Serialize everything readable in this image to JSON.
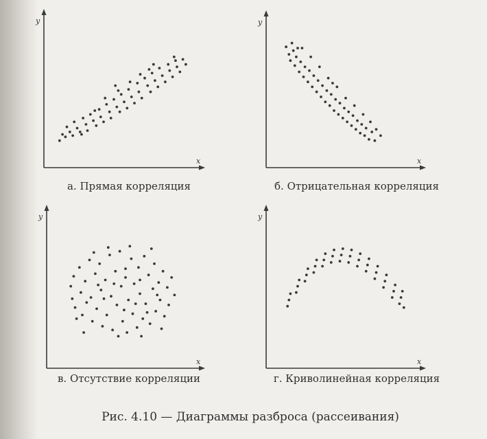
{
  "figure_caption": "Рис. 4.10 — Диаграммы разброса (рассеивания)",
  "chart_data": [
    {
      "id": "a",
      "type": "scatter",
      "caption": "а. Прямая корреляция",
      "xlabel": "x",
      "ylabel": "y",
      "xlim": [
        0,
        10
      ],
      "ylim": [
        0,
        10
      ],
      "grid": false,
      "points": [
        [
          0.6,
          1.5
        ],
        [
          0.8,
          2.0
        ],
        [
          1.0,
          1.8
        ],
        [
          1.1,
          2.6
        ],
        [
          1.3,
          2.2
        ],
        [
          1.5,
          1.9
        ],
        [
          1.6,
          3.0
        ],
        [
          1.8,
          2.5
        ],
        [
          2.0,
          2.2
        ],
        [
          2.2,
          3.3
        ],
        [
          2.4,
          2.8
        ],
        [
          2.5,
          2.3
        ],
        [
          2.7,
          3.6
        ],
        [
          2.9,
          3.1
        ],
        [
          3.1,
          2.7
        ],
        [
          3.3,
          4.0
        ],
        [
          3.4,
          3.4
        ],
        [
          3.6,
          3.0
        ],
        [
          3.8,
          4.4
        ],
        [
          4.0,
          3.8
        ],
        [
          4.1,
          3.3
        ],
        [
          4.3,
          4.8
        ],
        [
          4.5,
          4.2
        ],
        [
          4.7,
          3.8
        ],
        [
          4.8,
          5.2
        ],
        [
          5.0,
          4.6
        ],
        [
          5.2,
          4.1
        ],
        [
          5.3,
          5.6
        ],
        [
          5.5,
          5.0
        ],
        [
          5.7,
          4.5
        ],
        [
          5.9,
          6.1
        ],
        [
          6.0,
          5.4
        ],
        [
          6.2,
          4.9
        ],
        [
          6.4,
          6.5
        ],
        [
          6.6,
          5.9
        ],
        [
          6.8,
          5.4
        ],
        [
          6.9,
          6.9
        ],
        [
          7.1,
          6.3
        ],
        [
          7.3,
          5.8
        ],
        [
          7.4,
          7.3
        ],
        [
          7.6,
          6.7
        ],
        [
          7.8,
          6.2
        ],
        [
          8.0,
          7.6
        ],
        [
          8.1,
          7.1
        ],
        [
          8.3,
          6.6
        ],
        [
          8.5,
          7.9
        ],
        [
          8.6,
          7.4
        ],
        [
          8.8,
          7.0
        ],
        [
          9.0,
          8.0
        ],
        [
          9.2,
          7.6
        ],
        [
          3.0,
          3.9
        ],
        [
          4.6,
          5.5
        ],
        [
          6.1,
          6.8
        ],
        [
          7.0,
          7.6
        ],
        [
          8.4,
          8.2
        ],
        [
          2.1,
          2.0
        ],
        [
          5.4,
          6.2
        ],
        [
          6.7,
          7.2
        ],
        [
          3.7,
          4.9
        ],
        [
          4.4,
          5.9
        ]
      ]
    },
    {
      "id": "b",
      "type": "scatter",
      "caption": "б. Отрицательная корреляция",
      "xlabel": "x",
      "ylabel": "y",
      "xlim": [
        0,
        10
      ],
      "ylim": [
        0,
        10
      ],
      "grid": false,
      "points": [
        [
          0.9,
          9.0
        ],
        [
          1.1,
          8.4
        ],
        [
          1.2,
          7.9
        ],
        [
          1.4,
          8.7
        ],
        [
          1.5,
          7.5
        ],
        [
          1.6,
          8.2
        ],
        [
          1.8,
          7.0
        ],
        [
          1.9,
          7.8
        ],
        [
          2.1,
          6.6
        ],
        [
          2.2,
          7.4
        ],
        [
          2.4,
          6.2
        ],
        [
          2.5,
          7.1
        ],
        [
          2.7,
          5.8
        ],
        [
          2.8,
          6.7
        ],
        [
          3.0,
          5.4
        ],
        [
          3.1,
          6.3
        ],
        [
          3.3,
          5.0
        ],
        [
          3.4,
          5.9
        ],
        [
          3.6,
          4.6
        ],
        [
          3.7,
          5.5
        ],
        [
          3.9,
          4.3
        ],
        [
          4.0,
          5.2
        ],
        [
          4.2,
          3.9
        ],
        [
          4.3,
          4.8
        ],
        [
          4.5,
          3.6
        ],
        [
          4.6,
          4.5
        ],
        [
          4.8,
          3.3
        ],
        [
          4.9,
          4.1
        ],
        [
          5.1,
          3.0
        ],
        [
          5.2,
          3.8
        ],
        [
          5.4,
          2.7
        ],
        [
          5.5,
          3.5
        ],
        [
          5.7,
          2.4
        ],
        [
          5.8,
          3.1
        ],
        [
          6.0,
          2.1
        ],
        [
          6.1,
          2.8
        ],
        [
          6.3,
          1.9
        ],
        [
          6.4,
          2.5
        ],
        [
          6.6,
          1.6
        ],
        [
          6.8,
          2.2
        ],
        [
          7.0,
          1.5
        ],
        [
          1.3,
          9.3
        ],
        [
          2.0,
          8.9
        ],
        [
          2.6,
          8.2
        ],
        [
          3.2,
          7.4
        ],
        [
          3.8,
          6.5
        ],
        [
          4.4,
          5.8
        ],
        [
          5.0,
          4.9
        ],
        [
          5.6,
          4.3
        ],
        [
          6.2,
          3.6
        ],
        [
          6.7,
          3.0
        ],
        [
          7.1,
          2.4
        ],
        [
          7.4,
          1.9
        ],
        [
          1.7,
          8.9
        ],
        [
          4.1,
          6.1
        ]
      ]
    },
    {
      "id": "v",
      "type": "scatter",
      "caption": "в. Отсутствие корреляции",
      "xlabel": "x",
      "ylabel": "y",
      "xlim": [
        0,
        10
      ],
      "ylim": [
        0,
        10
      ],
      "grid": false,
      "points": [
        [
          1.2,
          5.9
        ],
        [
          1.3,
          4.9
        ],
        [
          1.4,
          6.7
        ],
        [
          1.5,
          4.2
        ],
        [
          1.8,
          7.4
        ],
        [
          1.9,
          5.4
        ],
        [
          2.0,
          3.6
        ],
        [
          2.2,
          6.3
        ],
        [
          2.3,
          4.6
        ],
        [
          2.5,
          8.0
        ],
        [
          2.6,
          5.0
        ],
        [
          2.7,
          3.1
        ],
        [
          2.9,
          6.9
        ],
        [
          3.0,
          4.1
        ],
        [
          3.2,
          7.7
        ],
        [
          3.3,
          5.6
        ],
        [
          3.4,
          2.7
        ],
        [
          3.6,
          6.4
        ],
        [
          3.7,
          3.6
        ],
        [
          3.9,
          8.4
        ],
        [
          4.0,
          5.1
        ],
        [
          4.1,
          2.4
        ],
        [
          4.3,
          7.1
        ],
        [
          4.4,
          4.4
        ],
        [
          4.6,
          8.7
        ],
        [
          4.7,
          5.9
        ],
        [
          4.8,
          3.1
        ],
        [
          5.0,
          6.6
        ],
        [
          5.1,
          2.2
        ],
        [
          5.2,
          4.8
        ],
        [
          5.4,
          8.1
        ],
        [
          5.5,
          3.7
        ],
        [
          5.6,
          6.1
        ],
        [
          5.8,
          2.6
        ],
        [
          5.9,
          7.4
        ],
        [
          6.0,
          5.3
        ],
        [
          6.2,
          3.3
        ],
        [
          6.3,
          8.3
        ],
        [
          6.4,
          4.5
        ],
        [
          6.6,
          6.8
        ],
        [
          6.7,
          2.9
        ],
        [
          6.9,
          5.7
        ],
        [
          7.0,
          7.7
        ],
        [
          7.1,
          3.9
        ],
        [
          7.3,
          6.2
        ],
        [
          7.4,
          4.8
        ],
        [
          7.6,
          7.1
        ],
        [
          7.7,
          3.5
        ],
        [
          7.9,
          5.8
        ],
        [
          8.0,
          4.4
        ],
        [
          8.2,
          6.6
        ],
        [
          8.4,
          5.2
        ],
        [
          2.1,
          2.2
        ],
        [
          3.8,
          9.0
        ],
        [
          5.3,
          9.1
        ],
        [
          6.8,
          8.9
        ],
        [
          4.5,
          1.9
        ],
        [
          6.1,
          1.9
        ],
        [
          7.5,
          2.5
        ],
        [
          1.6,
          3.3
        ],
        [
          2.8,
          8.6
        ],
        [
          3.5,
          4.9
        ],
        [
          4.9,
          4.0
        ],
        [
          5.7,
          4.5
        ],
        [
          6.5,
          3.8
        ],
        [
          3.1,
          6.0
        ],
        [
          4.2,
          6.1
        ],
        [
          5.0,
          7.3
        ],
        [
          6.0,
          6.4
        ],
        [
          7.2,
          5.2
        ]
      ]
    },
    {
      "id": "g",
      "type": "scatter",
      "caption": "г. Криволинейная корреляция",
      "xlabel": "x",
      "ylabel": "y",
      "xlim": [
        0,
        10
      ],
      "ylim": [
        0,
        10
      ],
      "grid": false,
      "points": [
        [
          1.0,
          4.3
        ],
        [
          1.1,
          4.8
        ],
        [
          1.2,
          5.3
        ],
        [
          1.6,
          5.4
        ],
        [
          1.7,
          5.9
        ],
        [
          1.8,
          6.4
        ],
        [
          2.2,
          6.3
        ],
        [
          2.3,
          6.8
        ],
        [
          2.4,
          7.3
        ],
        [
          2.8,
          7.0
        ],
        [
          2.9,
          7.5
        ],
        [
          3.0,
          8.0
        ],
        [
          3.4,
          7.5
        ],
        [
          3.5,
          8.0
        ],
        [
          3.6,
          8.5
        ],
        [
          4.0,
          7.8
        ],
        [
          4.1,
          8.3
        ],
        [
          4.2,
          8.8
        ],
        [
          4.6,
          7.9
        ],
        [
          4.7,
          8.4
        ],
        [
          4.8,
          8.9
        ],
        [
          5.2,
          7.8
        ],
        [
          5.3,
          8.3
        ],
        [
          5.4,
          8.8
        ],
        [
          5.8,
          7.5
        ],
        [
          5.9,
          8.0
        ],
        [
          6.0,
          8.5
        ],
        [
          6.4,
          7.1
        ],
        [
          6.5,
          7.6
        ],
        [
          6.6,
          8.1
        ],
        [
          7.0,
          6.5
        ],
        [
          7.1,
          7.0
        ],
        [
          7.2,
          7.5
        ],
        [
          7.6,
          5.8
        ],
        [
          7.7,
          6.3
        ],
        [
          7.8,
          6.8
        ],
        [
          8.2,
          5.0
        ],
        [
          8.3,
          5.5
        ],
        [
          8.4,
          6.0
        ],
        [
          8.7,
          4.5
        ],
        [
          8.8,
          5.0
        ],
        [
          8.9,
          5.5
        ],
        [
          9.0,
          4.2
        ]
      ]
    }
  ]
}
